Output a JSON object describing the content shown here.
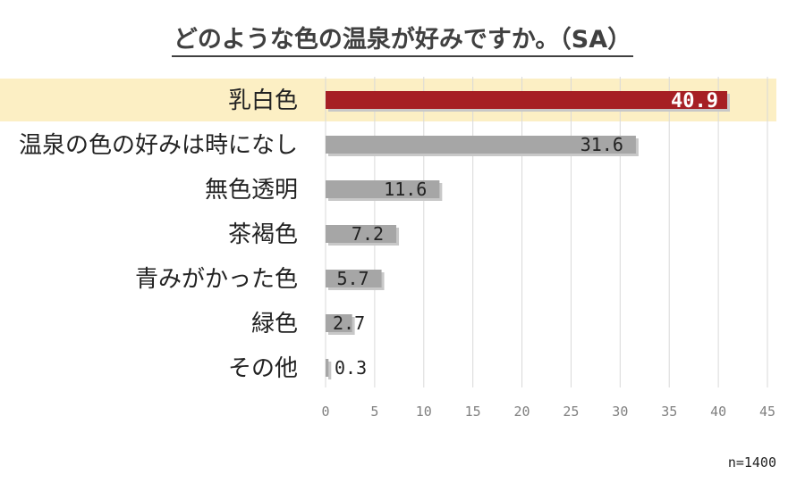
{
  "title": "どのような色の温泉が好みですか。（SA）",
  "note": "n=1400",
  "colors": {
    "highlight_bar": "#a61f24",
    "bar": "#a6a6a6",
    "highlight_row": "#fcefc4",
    "shadow": "#c8c8c8",
    "grid": "#d9d9d9"
  },
  "chart_data": {
    "type": "bar",
    "orientation": "horizontal",
    "title": "どのような色の温泉が好みですか。（SA）",
    "categories": [
      "乳白色",
      "温泉の色の好みは時になし",
      "無色透明",
      "茶褐色",
      "青みがかった色",
      "緑色",
      "その他"
    ],
    "values": [
      40.9,
      31.6,
      11.6,
      7.2,
      5.7,
      2.7,
      0.3
    ],
    "value_labels": [
      "40.9",
      "31.6",
      "11.6",
      "7.2",
      "5.7",
      "2.7",
      "0.3"
    ],
    "highlighted_category": "乳白色",
    "xlim": [
      0,
      45
    ],
    "xticks": [
      "0",
      "5",
      "10",
      "15",
      "20",
      "25",
      "30",
      "35",
      "40",
      "45"
    ],
    "grid": true,
    "xlabel": "",
    "ylabel": ""
  }
}
